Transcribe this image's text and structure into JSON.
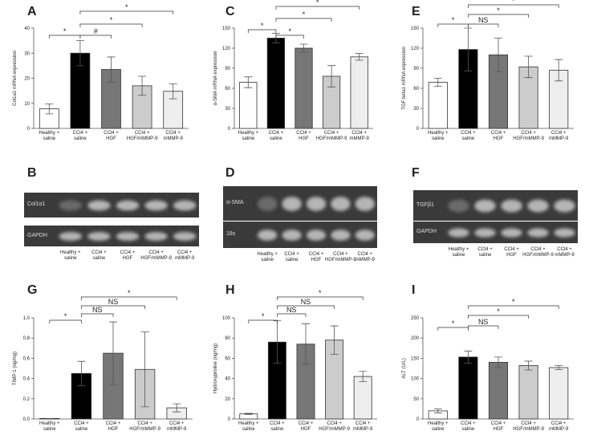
{
  "chart_data": [
    {
      "type": "bar",
      "panel": "A",
      "y_label": "Col1a1 mRNA expression",
      "categories": [
        "Healthy +\nsaline",
        "CCl4 +\nsaline",
        "CCl4 +\nHGF",
        "CCl4 +\nHGF/mMMP-9",
        "CCl4 +\nmMMP-9"
      ],
      "values": [
        7.8,
        30,
        23.5,
        17,
        14.8
      ],
      "errors": [
        2,
        5,
        5,
        3.8,
        3
      ],
      "colors": [
        "#ffffff",
        "#000000",
        "#777777",
        "#cccccc",
        "#eeeeee"
      ],
      "ylim": [
        0,
        40
      ],
      "yticks": [
        0,
        10,
        20,
        30,
        40
      ],
      "annotations": [
        "*",
        "#",
        "*",
        "*"
      ]
    },
    {
      "type": "bar",
      "panel": "C",
      "y_label": "α-SMA mRNA expression",
      "categories": [
        "Healthy +\nsaline",
        "CCl4 +\nsaline",
        "CCl4 +\nHGF",
        "CCl4 +\nHGF/mMMP-9",
        "CCl4 +\nmMMP-9"
      ],
      "values": [
        69,
        135,
        120,
        78,
        107
      ],
      "errors": [
        8,
        7,
        6,
        16,
        5
      ],
      "colors": [
        "#ffffff",
        "#000000",
        "#777777",
        "#cccccc",
        "#eeeeee"
      ],
      "ylim": [
        0,
        150
      ],
      "yticks": [
        0,
        30,
        60,
        90,
        120,
        150
      ],
      "annotations": [
        "*",
        "*",
        "*",
        "*"
      ]
    },
    {
      "type": "bar",
      "panel": "E",
      "y_label": "TGF beta1 mRNA expression",
      "categories": [
        "Healthy +\nsaline",
        "CCl4 +\nsaline",
        "CCl4 +\nHGF",
        "CCl4 +\nHGF/mMMP-9",
        "CCl4 +\nmMMP-9"
      ],
      "values": [
        69,
        118,
        110,
        92,
        87
      ],
      "errors": [
        6,
        32,
        25,
        16,
        16
      ],
      "colors": [
        "#ffffff",
        "#000000",
        "#777777",
        "#cccccc",
        "#eeeeee"
      ],
      "ylim": [
        0,
        150
      ],
      "yticks": [
        0,
        30,
        60,
        90,
        120,
        150
      ],
      "annotations": [
        "*",
        "NS",
        "*",
        "*"
      ]
    },
    {
      "type": "bar",
      "panel": "G",
      "y_label": "TIMP-1 (ng/mg)",
      "categories": [
        "Healthy +\nsaline",
        "CCl4 +\nsaline",
        "CCl4 +\nHGF",
        "CCl4 +\nHGF/mMMP-9",
        "CCl4 +\nmMMP-9"
      ],
      "values": [
        0.005,
        0.45,
        0.65,
        0.49,
        0.11
      ],
      "errors": [
        0,
        0.12,
        0.31,
        0.37,
        0.04
      ],
      "colors": [
        "#ffffff",
        "#000000",
        "#777777",
        "#cccccc",
        "#eeeeee"
      ],
      "ylim": [
        0,
        1.0
      ],
      "yticks": [
        {
          "value": 0,
          "label": "0.0"
        },
        0.2,
        0.4,
        0.6,
        0.8,
        {
          "value": 1.0,
          "label": "1.0"
        }
      ],
      "annotations": [
        "*",
        "NS",
        "NS",
        "*"
      ]
    },
    {
      "type": "bar",
      "panel": "H",
      "y_label": "Hydroxyproline (ng/mg)",
      "categories": [
        "Healthy +\nsaline",
        "CCl4 +\nsaline",
        "CCl4 +\nHGF",
        "CCl4 +\nHGF/mMMP-9",
        "CCl4 +\nmMMP-9"
      ],
      "values": [
        5,
        76,
        74,
        78,
        42
      ],
      "errors": [
        0.5,
        21,
        20,
        14,
        5
      ],
      "colors": [
        "#ffffff",
        "#000000",
        "#777777",
        "#cccccc",
        "#eeeeee"
      ],
      "ylim": [
        0,
        100
      ],
      "yticks": [
        0,
        20,
        40,
        60,
        80,
        100
      ],
      "annotations": [
        "*",
        "NS",
        "NS",
        "*"
      ]
    },
    {
      "type": "bar",
      "panel": "I",
      "y_label": "ALT (U/L)",
      "categories": [
        "Healthy +\nsaline",
        "CCl4 +\nsaline",
        "CCl4 +\nHGF",
        "CCl4 +\nHGF/mMMP-9",
        "CCl4 +\nmMMP-9"
      ],
      "values": [
        20,
        153,
        140,
        132,
        127
      ],
      "errors": [
        5,
        15,
        13,
        11,
        5
      ],
      "colors": [
        "#ffffff",
        "#000000",
        "#777777",
        "#cccccc",
        "#eeeeee"
      ],
      "ylim": [
        0,
        250
      ],
      "yticks": [
        0,
        50,
        100,
        150,
        200,
        250
      ],
      "annotations": [
        "*",
        "NS",
        "*",
        "*"
      ]
    }
  ],
  "gels": [
    {
      "panel": "B",
      "rows": [
        "Col1α1",
        "GAPDH"
      ],
      "lanes": [
        "Healthy +\nsaline",
        "CCl4 +\nsaline",
        "CCl4 +\nHGF",
        "CCl4 +\nHGF/mMMP-9",
        "CCl4 +\nmMMP-9"
      ]
    },
    {
      "panel": "D",
      "rows": [
        "α-SMA",
        "18s"
      ],
      "lanes": [
        "Healthy +\nsaline",
        "CCl4 +\nsaline",
        "CCl4 +\nHGF",
        "CCl4 +\nHGF/mMMP-9",
        "CCl4 +\nmMMP-9"
      ]
    },
    {
      "panel": "F",
      "rows": [
        "TGFβ1",
        "GAPDH"
      ],
      "lanes": [
        "Healthy +\nsaline",
        "CCl4 +\nsaline",
        "CCl4 +\nHGF",
        "CCl4 +\nHGF/mMMP-9",
        "CCl4 +\nmMMP-9"
      ]
    }
  ]
}
